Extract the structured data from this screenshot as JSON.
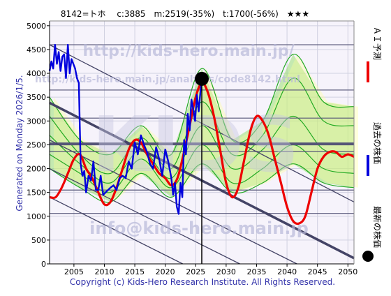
{
  "header": {
    "text": "8142=トホ　 c:3885　m:2519(-35%)　t:1700(-56%)　★★★"
  },
  "side_label": "Generated on Monday 2026/1/5.",
  "footer": "Copyright (c) Kids-Hero Research Institute. All Rights Reserved.",
  "watermarks": {
    "url": "http://kids-hero.main.jp/",
    "analysis_url": "http://kids-hero.main.jp/analysis/code8142.html",
    "mail": "info@kids-hero.main.jp",
    "logo": "KIDS"
  },
  "legend": [
    {
      "label": "ＡＩ予測",
      "color": "#ee0000"
    },
    {
      "label": "過去の株価",
      "color": "#0000dd"
    },
    {
      "label": "最新の株価",
      "color": "#000000"
    }
  ],
  "colors": {
    "prediction": "#ee0000",
    "history": "#0000dd",
    "bands_green": "#22aa22",
    "fill_green": "#88dd55",
    "fill_yellow": "#ffff99",
    "trend": "#444466"
  },
  "chart_data": {
    "type": "line",
    "title": "8142=トホ　 c:3885　m:2519(-35%)　t:1700(-56%)　★★★",
    "xlim": [
      2001,
      2051
    ],
    "ylim": [
      0,
      5100
    ],
    "x_ticks": [
      2005,
      2010,
      2015,
      2020,
      2025,
      2030,
      2035,
      2040,
      2045,
      2050
    ],
    "y_ticks": [
      0,
      500,
      1000,
      1500,
      2000,
      2500,
      3000,
      3500,
      4000,
      4500,
      5000
    ],
    "grid": true,
    "latest": {
      "x": 2026.0,
      "y": 3885
    },
    "reference_lines": [
      4600,
      3650,
      3060,
      2519,
      2360,
      1550,
      1060
    ],
    "highlight_line": 2519,
    "trend_lines": [
      {
        "x": [
          2001,
          2051
        ],
        "y": [
          3380,
          120
        ],
        "bold": true
      },
      {
        "x": [
          2001,
          2051
        ],
        "y": [
          4600,
          1300
        ]
      },
      {
        "x": [
          2001,
          2051
        ],
        "y": [
          2000,
          -1200
        ]
      },
      {
        "x": [
          2001,
          2051
        ],
        "y": [
          2600,
          -600
        ]
      },
      {
        "x": [
          2001,
          2051
        ],
        "y": [
          1400,
          -1800
        ]
      }
    ],
    "series": [
      {
        "role": "history",
        "x": [
          2001.0,
          2001.3,
          2001.6,
          2001.9,
          2002.2,
          2002.5,
          2002.8,
          2003.1,
          2003.4,
          2003.7,
          2004.0,
          2004.3,
          2004.6,
          2004.9,
          2005.2,
          2005.5,
          2005.8,
          2006.1,
          2006.4,
          2006.7,
          2007.0,
          2007.4,
          2007.8,
          2008.2,
          2008.6,
          2009.0,
          2009.4,
          2009.8,
          2010.2,
          2010.6,
          2011.0,
          2011.5,
          2012.0,
          2012.5,
          2013.0,
          2013.5,
          2014.0,
          2014.5,
          2015.0,
          2015.5,
          2016.0,
          2016.5,
          2017.0,
          2017.5,
          2018.0,
          2018.5,
          2019.0,
          2019.5,
          2020.0,
          2020.5,
          2021.0,
          2021.3,
          2021.6,
          2021.9,
          2022.2,
          2022.5,
          2022.8,
          2023.1,
          2023.4,
          2023.7,
          2024.0,
          2024.3,
          2024.6,
          2024.9,
          2025.2,
          2025.5,
          2025.8,
          2026.0
        ],
        "values": [
          4050,
          4250,
          4100,
          4600,
          4200,
          4450,
          4050,
          4350,
          4400,
          3900,
          4600,
          4000,
          4300,
          4200,
          4100,
          3900,
          3800,
          2100,
          1850,
          1950,
          1500,
          1850,
          1750,
          2150,
          1550,
          1550,
          1850,
          1450,
          1500,
          1550,
          1600,
          1650,
          1550,
          1800,
          1850,
          1800,
          2150,
          2000,
          2550,
          2300,
          2700,
          2500,
          2350,
          2100,
          2000,
          2450,
          2200,
          1850,
          2400,
          2150,
          1800,
          1450,
          1700,
          1200,
          1050,
          1700,
          1400,
          2600,
          2300,
          3150,
          2800,
          3450,
          3250,
          3000,
          3550,
          3200,
          3650,
          3885
        ]
      },
      {
        "role": "prediction",
        "x": [
          2001,
          2002,
          2003,
          2004,
          2005,
          2006,
          2007,
          2008,
          2009,
          2010,
          2011,
          2012,
          2013,
          2014,
          2015,
          2016,
          2017,
          2018,
          2019,
          2020,
          2021,
          2022,
          2023,
          2024,
          2025,
          2026,
          2027,
          2028,
          2029,
          2030,
          2031,
          2032,
          2033,
          2034,
          2035,
          2036,
          2037,
          2038,
          2039,
          2040,
          2041,
          2042,
          2043,
          2044,
          2045,
          2046,
          2047,
          2048,
          2049,
          2050,
          2051
        ],
        "values": [
          1400,
          1400,
          1600,
          1900,
          2200,
          2300,
          2000,
          1800,
          1500,
          1250,
          1300,
          1600,
          2000,
          2400,
          2600,
          2550,
          2300,
          2100,
          1900,
          1800,
          1650,
          1800,
          2300,
          2900,
          3500,
          3800,
          3600,
          3100,
          2400,
          1700,
          1400,
          1600,
          2200,
          2800,
          3100,
          3000,
          2700,
          2200,
          1700,
          1200,
          900,
          850,
          1000,
          1500,
          2000,
          2250,
          2350,
          2350,
          2250,
          2300,
          2250
        ]
      },
      {
        "role": "band",
        "x": [
          2001,
          2006,
          2011,
          2016,
          2021,
          2026,
          2031,
          2036,
          2041,
          2046,
          2051
        ],
        "values": [
          3100,
          2300,
          1900,
          2650,
          2000,
          3400,
          2300,
          2700,
          3900,
          3000,
          2900
        ]
      },
      {
        "role": "band",
        "x": [
          2001,
          2006,
          2011,
          2016,
          2021,
          2026,
          2031,
          2036,
          2041,
          2046,
          2051
        ],
        "values": [
          2700,
          2100,
          1700,
          2400,
          1800,
          2900,
          2000,
          2400,
          3100,
          2400,
          2300
        ]
      },
      {
        "role": "band",
        "x": [
          2001,
          2006,
          2011,
          2016,
          2021,
          2026,
          2031,
          2036,
          2041,
          2046,
          2051
        ],
        "values": [
          2300,
          1900,
          1500,
          2200,
          1600,
          2500,
          1700,
          2000,
          2500,
          2000,
          1900
        ]
      },
      {
        "role": "band",
        "x": [
          2001,
          2006,
          2011,
          2016,
          2021,
          2026,
          2031,
          2036,
          2041,
          2046,
          2051
        ],
        "values": [
          2000,
          1600,
          1300,
          1900,
          1400,
          2100,
          1500,
          1700,
          2100,
          1700,
          1600
        ]
      },
      {
        "role": "band",
        "x": [
          2001,
          2006,
          2011,
          2016,
          2021,
          2026,
          2031,
          2036,
          2041,
          2046,
          2051
        ],
        "values": [
          3500,
          2600,
          2300,
          2900,
          2300,
          4100,
          2600,
          3000,
          4400,
          3400,
          3300
        ]
      }
    ]
  }
}
